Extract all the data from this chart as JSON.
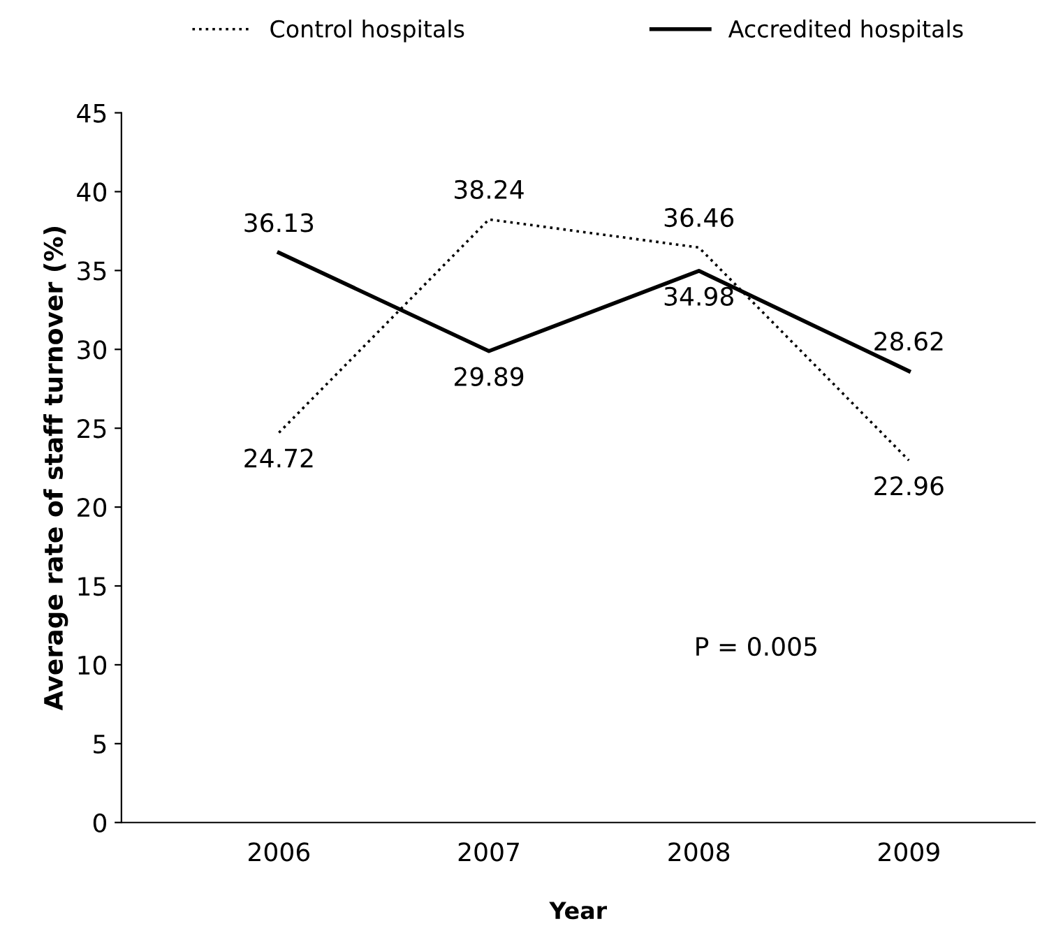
{
  "chart_data": {
    "type": "line",
    "xlabel": "Year",
    "ylabel": "Average rate of staff turnover (%)",
    "categories": [
      "2006",
      "2007",
      "2008",
      "2009"
    ],
    "series": [
      {
        "name": "Control hospitals",
        "color": "#000000",
        "line_style": "dotted",
        "values": [
          24.72,
          38.24,
          36.46,
          22.96
        ]
      },
      {
        "name": "Accredited hospitals",
        "color": "#000000",
        "line_style": "solid",
        "values": [
          36.13,
          29.89,
          34.98,
          28.62
        ]
      }
    ],
    "ylim": [
      0,
      45
    ],
    "yticks": [
      0,
      5,
      10,
      15,
      20,
      25,
      30,
      35,
      40,
      45
    ],
    "data_labels": true,
    "grid": false,
    "legend": "top",
    "marker": "none",
    "annotations": [
      "P = 0.005"
    ]
  }
}
